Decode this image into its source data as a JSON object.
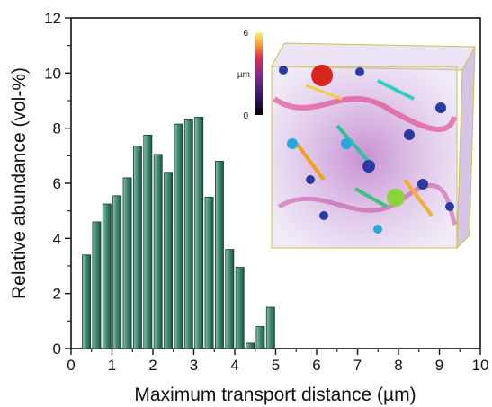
{
  "chart_data": {
    "type": "bar",
    "xlabel": "Maximum transport distance (µm)",
    "ylabel": "Relative abundance (vol-%)",
    "xlim": [
      0,
      10
    ],
    "ylim": [
      0,
      12
    ],
    "xticks": [
      0,
      1,
      2,
      3,
      4,
      5,
      6,
      7,
      8,
      9,
      10
    ],
    "yticks": [
      0,
      2,
      4,
      6,
      8,
      10,
      12
    ],
    "bin_width": 0.25,
    "bars": [
      {
        "x": 0.375,
        "y": 3.4
      },
      {
        "x": 0.625,
        "y": 4.6
      },
      {
        "x": 0.875,
        "y": 5.25
      },
      {
        "x": 1.125,
        "y": 5.55
      },
      {
        "x": 1.375,
        "y": 6.2
      },
      {
        "x": 1.625,
        "y": 7.35
      },
      {
        "x": 1.875,
        "y": 7.75
      },
      {
        "x": 2.125,
        "y": 7.05
      },
      {
        "x": 2.375,
        "y": 6.4
      },
      {
        "x": 2.625,
        "y": 8.15
      },
      {
        "x": 2.875,
        "y": 8.3
      },
      {
        "x": 3.125,
        "y": 8.4
      },
      {
        "x": 3.375,
        "y": 5.5
      },
      {
        "x": 3.625,
        "y": 6.8
      },
      {
        "x": 3.875,
        "y": 3.6
      },
      {
        "x": 4.125,
        "y": 2.95
      },
      {
        "x": 4.375,
        "y": 0.2
      },
      {
        "x": 4.625,
        "y": 0.8
      },
      {
        "x": 4.875,
        "y": 1.5
      }
    ],
    "bar_color": "#2f7a64",
    "grid": false,
    "inset": {
      "type": "3d-render",
      "colorbar": {
        "min_label": "0",
        "max_label": "6",
        "unit": "µm"
      },
      "colors": [
        "#000000",
        "#3a1c6e",
        "#8a2a8a",
        "#e0304a",
        "#f5a030",
        "#fff176"
      ]
    }
  }
}
